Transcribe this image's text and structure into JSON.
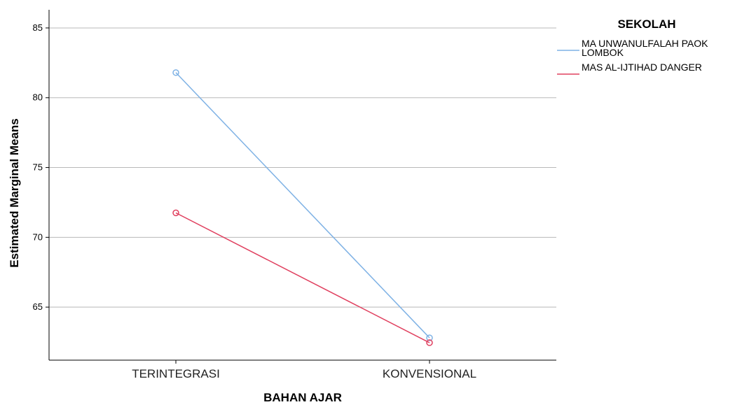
{
  "chart_data": {
    "type": "line",
    "xlabel": "BAHAN AJAR",
    "ylabel": "Estimated Marginal Means",
    "categories": [
      "TERINTEGRASI",
      "KONVENSIONAL"
    ],
    "yticks": [
      65,
      70,
      75,
      80,
      85
    ],
    "ylim": [
      61.2,
      86.3
    ],
    "grid": true,
    "legend": {
      "title": "SEKOLAH",
      "placement": "right"
    },
    "series": [
      {
        "name": "MA UNWANULFALAH PAOK LOMBOK",
        "name_lines": [
          "MA UNWANULFALAH PAOK",
          "LOMBOK"
        ],
        "color": "#7fb2e5",
        "values": [
          81.8,
          62.8
        ]
      },
      {
        "name": "MAS AL-IJTIHAD DANGER",
        "name_lines": [
          "MAS AL-IJTIHAD DANGER"
        ],
        "color": "#e0405f",
        "values": [
          71.75,
          62.45
        ]
      }
    ]
  }
}
